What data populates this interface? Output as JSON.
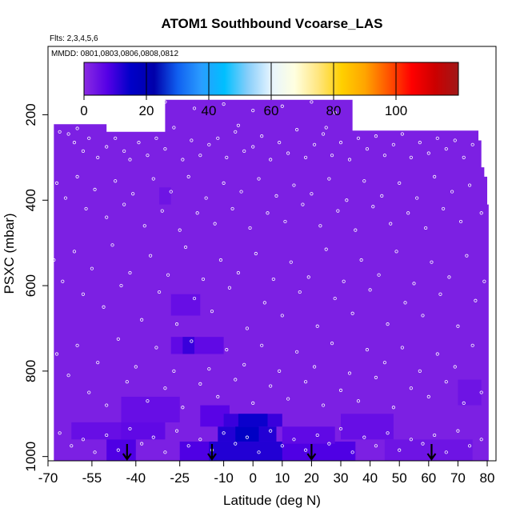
{
  "chart_data": {
    "type": "heatmap",
    "title": "ATOM1 Southbound Vcoarse_LAS",
    "subtitle_flights": "Flts: 2,3,4,5,6",
    "subtitle_dates": "MMDD: 0801,0803,0806,0808,0812",
    "xlabel": "Latitude (deg N)",
    "ylabel": "PSXC (mbar)",
    "xlim": [
      -70,
      83
    ],
    "ylim": [
      1010,
      40
    ],
    "x_ticks": [
      -70,
      -55,
      -40,
      -25,
      -10,
      0,
      10,
      20,
      30,
      40,
      50,
      60,
      70,
      80
    ],
    "y_ticks": [
      200,
      400,
      600,
      800,
      1000
    ],
    "colorbar": {
      "range": [
        0,
        120
      ],
      "ticks": [
        0,
        20,
        40,
        60,
        80,
        100
      ],
      "colors": [
        "#8a2be2",
        "#5500e6",
        "#0000c8",
        "#0000aa",
        "#1060f0",
        "#2a9cff",
        "#00bfff",
        "#87cefa",
        "#e6f4ff",
        "#ffffe0",
        "#ffe680",
        "#ffd000",
        "#ffa500",
        "#ff5500",
        "#ff0000",
        "#cc0000",
        "#a01818"
      ]
    },
    "background_value": 2,
    "coverage_top": [
      [
        -68,
        222
      ],
      [
        -50,
        240
      ],
      [
        -30,
        165
      ],
      [
        33,
        165
      ],
      [
        34,
        237
      ],
      [
        76,
        237
      ],
      [
        77,
        260
      ],
      [
        78,
        323
      ],
      [
        79,
        345
      ],
      [
        80,
        410
      ],
      [
        80.5,
        1010
      ]
    ],
    "cells": [
      {
        "x": [
          -32,
          -28
        ],
        "y": [
          370,
          410
        ],
        "v": 4
      },
      {
        "x": [
          -28,
          -18
        ],
        "y": [
          620,
          670
        ],
        "v": 5
      },
      {
        "x": [
          -28,
          -10
        ],
        "y": [
          720,
          760
        ],
        "v": 6
      },
      {
        "x": [
          -24,
          -20
        ],
        "y": [
          720,
          760
        ],
        "v": 10
      },
      {
        "x": [
          -45,
          -25
        ],
        "y": [
          860,
          920
        ],
        "v": 5
      },
      {
        "x": [
          -45,
          -30
        ],
        "y": [
          920,
          960
        ],
        "v": 6
      },
      {
        "x": [
          -62,
          -45
        ],
        "y": [
          920,
          960
        ],
        "v": 5
      },
      {
        "x": [
          -50,
          -40
        ],
        "y": [
          960,
          1010
        ],
        "v": 8
      },
      {
        "x": [
          -18,
          -8
        ],
        "y": [
          880,
          930
        ],
        "v": 7
      },
      {
        "x": [
          -10,
          10
        ],
        "y": [
          900,
          930
        ],
        "v": 10
      },
      {
        "x": [
          -5,
          5
        ],
        "y": [
          900,
          930
        ],
        "v": 14
      },
      {
        "x": [
          -12,
          8
        ],
        "y": [
          930,
          965
        ],
        "v": 12
      },
      {
        "x": [
          -6,
          2
        ],
        "y": [
          930,
          965
        ],
        "v": 16
      },
      {
        "x": [
          -25,
          35
        ],
        "y": [
          965,
          1010
        ],
        "v": 8
      },
      {
        "x": [
          -15,
          10
        ],
        "y": [
          965,
          1010
        ],
        "v": 12
      },
      {
        "x": [
          10,
          28
        ],
        "y": [
          930,
          970
        ],
        "v": 6
      },
      {
        "x": [
          30,
          48
        ],
        "y": [
          900,
          960
        ],
        "v": 5
      },
      {
        "x": [
          45,
          75
        ],
        "y": [
          960,
          1010
        ],
        "v": 4
      },
      {
        "x": [
          70,
          78
        ],
        "y": [
          820,
          880
        ],
        "v": 4
      }
    ],
    "points": [
      [
        -66,
        240
      ],
      [
        -63,
        245
      ],
      [
        -61,
        265
      ],
      [
        -58,
        285
      ],
      [
        -56,
        255
      ],
      [
        -53,
        300
      ],
      [
        -50,
        275
      ],
      [
        -47,
        255
      ],
      [
        -44,
        285
      ],
      [
        -42,
        305
      ],
      [
        -39,
        265
      ],
      [
        -36,
        295
      ],
      [
        -33,
        255
      ],
      [
        -30,
        280
      ],
      [
        -27,
        230
      ],
      [
        -24,
        305
      ],
      [
        -21,
        260
      ],
      [
        -18,
        295
      ],
      [
        -15,
        270
      ],
      [
        -12,
        255
      ],
      [
        -9,
        300
      ],
      [
        -6,
        240
      ],
      [
        -3,
        285
      ],
      [
        0,
        275
      ],
      [
        3,
        250
      ],
      [
        6,
        305
      ],
      [
        9,
        265
      ],
      [
        12,
        290
      ],
      [
        15,
        235
      ],
      [
        18,
        300
      ],
      [
        21,
        270
      ],
      [
        24,
        245
      ],
      [
        27,
        295
      ],
      [
        30,
        265
      ],
      [
        33,
        305
      ],
      [
        36,
        255
      ],
      [
        39,
        280
      ],
      [
        42,
        250
      ],
      [
        45,
        295
      ],
      [
        48,
        270
      ],
      [
        51,
        245
      ],
      [
        54,
        300
      ],
      [
        57,
        265
      ],
      [
        60,
        290
      ],
      [
        63,
        255
      ],
      [
        66,
        280
      ],
      [
        69,
        260
      ],
      [
        72,
        300
      ],
      [
        75,
        270
      ],
      [
        -67,
        360
      ],
      [
        -64,
        395
      ],
      [
        -60,
        345
      ],
      [
        -57,
        420
      ],
      [
        -54,
        375
      ],
      [
        -50,
        440
      ],
      [
        -47,
        355
      ],
      [
        -44,
        410
      ],
      [
        -41,
        385
      ],
      [
        -37,
        460
      ],
      [
        -34,
        350
      ],
      [
        -31,
        425
      ],
      [
        -28,
        380
      ],
      [
        -25,
        470
      ],
      [
        -22,
        345
      ],
      [
        -19,
        430
      ],
      [
        -16,
        395
      ],
      [
        -13,
        455
      ],
      [
        -10,
        360
      ],
      [
        -7,
        420
      ],
      [
        -4,
        380
      ],
      [
        -1,
        465
      ],
      [
        2,
        350
      ],
      [
        5,
        430
      ],
      [
        8,
        390
      ],
      [
        11,
        450
      ],
      [
        14,
        365
      ],
      [
        17,
        410
      ],
      [
        20,
        385
      ],
      [
        23,
        460
      ],
      [
        26,
        350
      ],
      [
        29,
        425
      ],
      [
        32,
        400
      ],
      [
        35,
        470
      ],
      [
        38,
        355
      ],
      [
        41,
        415
      ],
      [
        44,
        390
      ],
      [
        47,
        455
      ],
      [
        50,
        360
      ],
      [
        53,
        430
      ],
      [
        56,
        395
      ],
      [
        59,
        465
      ],
      [
        62,
        345
      ],
      [
        65,
        420
      ],
      [
        68,
        380
      ],
      [
        71,
        450
      ],
      [
        74,
        365
      ],
      [
        78,
        430
      ],
      [
        -68,
        540
      ],
      [
        -65,
        590
      ],
      [
        -61,
        520
      ],
      [
        -58,
        620
      ],
      [
        -55,
        560
      ],
      [
        -51,
        650
      ],
      [
        -48,
        505
      ],
      [
        -45,
        600
      ],
      [
        -42,
        570
      ],
      [
        -38,
        680
      ],
      [
        -35,
        530
      ],
      [
        -32,
        615
      ],
      [
        -29,
        575
      ],
      [
        -26,
        690
      ],
      [
        -23,
        510
      ],
      [
        -20,
        630
      ],
      [
        -17,
        585
      ],
      [
        -14,
        660
      ],
      [
        -11,
        540
      ],
      [
        -8,
        605
      ],
      [
        -5,
        570
      ],
      [
        -2,
        700
      ],
      [
        1,
        525
      ],
      [
        4,
        640
      ],
      [
        7,
        585
      ],
      [
        10,
        670
      ],
      [
        13,
        545
      ],
      [
        16,
        615
      ],
      [
        19,
        580
      ],
      [
        22,
        695
      ],
      [
        25,
        515
      ],
      [
        28,
        630
      ],
      [
        31,
        590
      ],
      [
        34,
        665
      ],
      [
        37,
        540
      ],
      [
        40,
        610
      ],
      [
        43,
        575
      ],
      [
        46,
        690
      ],
      [
        49,
        520
      ],
      [
        52,
        640
      ],
      [
        55,
        595
      ],
      [
        58,
        670
      ],
      [
        61,
        545
      ],
      [
        64,
        620
      ],
      [
        67,
        580
      ],
      [
        70,
        695
      ],
      [
        73,
        530
      ],
      [
        76,
        635
      ],
      [
        79,
        590
      ],
      [
        -67,
        760
      ],
      [
        -63,
        810
      ],
      [
        -60,
        740
      ],
      [
        -56,
        850
      ],
      [
        -53,
        780
      ],
      [
        -50,
        880
      ],
      [
        -46,
        725
      ],
      [
        -43,
        825
      ],
      [
        -40,
        790
      ],
      [
        -36,
        870
      ],
      [
        -33,
        745
      ],
      [
        -30,
        840
      ],
      [
        -27,
        800
      ],
      [
        -24,
        885
      ],
      [
        -21,
        730
      ],
      [
        -18,
        830
      ],
      [
        -15,
        795
      ],
      [
        -12,
        860
      ],
      [
        -9,
        750
      ],
      [
        -6,
        820
      ],
      [
        -3,
        785
      ],
      [
        0,
        875
      ],
      [
        3,
        740
      ],
      [
        6,
        835
      ],
      [
        9,
        800
      ],
      [
        12,
        865
      ],
      [
        15,
        755
      ],
      [
        18,
        825
      ],
      [
        21,
        790
      ],
      [
        24,
        880
      ],
      [
        27,
        735
      ],
      [
        30,
        845
      ],
      [
        33,
        805
      ],
      [
        36,
        870
      ],
      [
        39,
        750
      ],
      [
        42,
        815
      ],
      [
        45,
        780
      ],
      [
        48,
        885
      ],
      [
        51,
        745
      ],
      [
        54,
        840
      ],
      [
        57,
        800
      ],
      [
        60,
        860
      ],
      [
        63,
        760
      ],
      [
        66,
        825
      ],
      [
        69,
        790
      ],
      [
        72,
        875
      ],
      [
        75,
        740
      ],
      [
        78,
        850
      ],
      [
        -66,
        945
      ],
      [
        -62,
        975
      ],
      [
        -58,
        960
      ],
      [
        -54,
        990
      ],
      [
        -50,
        950
      ],
      [
        -46,
        985
      ],
      [
        -42,
        935
      ],
      [
        -38,
        970
      ],
      [
        -34,
        955
      ],
      [
        -30,
        990
      ],
      [
        -26,
        940
      ],
      [
        -22,
        975
      ],
      [
        -18,
        960
      ],
      [
        -14,
        985
      ],
      [
        -10,
        945
      ],
      [
        -6,
        970
      ],
      [
        -2,
        955
      ],
      [
        2,
        990
      ],
      [
        6,
        940
      ],
      [
        10,
        975
      ],
      [
        14,
        960
      ],
      [
        18,
        985
      ],
      [
        22,
        950
      ],
      [
        26,
        970
      ],
      [
        30,
        935
      ],
      [
        34,
        990
      ],
      [
        38,
        955
      ],
      [
        42,
        975
      ],
      [
        46,
        945
      ],
      [
        50,
        985
      ],
      [
        54,
        960
      ],
      [
        58,
        970
      ],
      [
        62,
        950
      ],
      [
        66,
        990
      ],
      [
        70,
        940
      ],
      [
        74,
        975
      ],
      [
        78,
        960
      ],
      [
        -30,
        170
      ],
      [
        -20,
        185
      ],
      [
        -10,
        175
      ],
      [
        0,
        190
      ],
      [
        10,
        180
      ],
      [
        20,
        170
      ],
      [
        28,
        195
      ],
      [
        -40,
        230
      ],
      [
        -5,
        225
      ],
      [
        25,
        230
      ],
      [
        60,
        232
      ],
      [
        -60,
        232
      ]
    ],
    "arrows_x": [
      -43,
      -14,
      20,
      61
    ]
  }
}
